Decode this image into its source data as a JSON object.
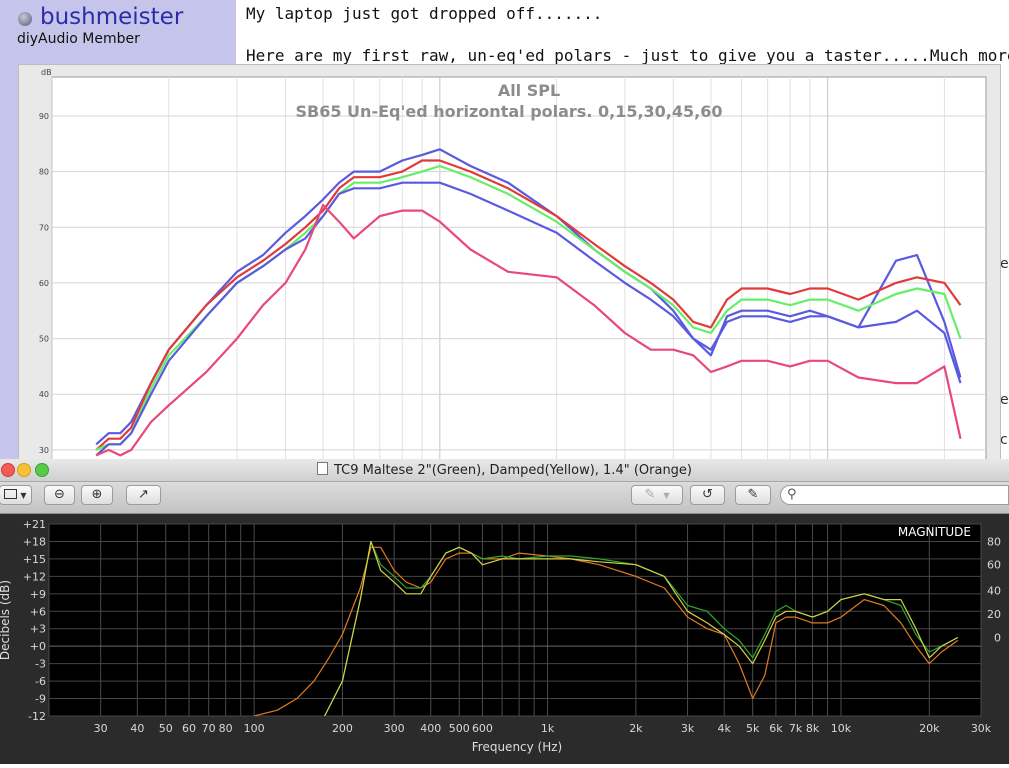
{
  "forum": {
    "username": "bushmeister",
    "member_title": "diyAudio Member",
    "post_line_1": "My laptop just got dropped off.......",
    "post_line_2": "Here are my first raw, un-eq'ed polars - just to give you a taster.....Much more to follow.",
    "edge_chars": [
      "e",
      "e",
      "c"
    ]
  },
  "spl_chart": {
    "title": "All SPL",
    "subtitle": "SB65 Un-Eq'ed horizontal polars. 0,15,30,45,60",
    "y_unit": "dB",
    "y_ticks": [
      "90",
      "80",
      "70",
      "60",
      "50",
      "40",
      "30"
    ],
    "colors": {
      "s0": "#5a5ae0",
      "s1": "#e23a3a",
      "s2": "#66ee66",
      "s3": "#5a5ae0",
      "s4": "#e8487a"
    }
  },
  "window": {
    "title": "TC9 Maltese 2\"(Green), Damped(Yellow), 1.4\" (Orange)",
    "toolbar": {
      "zoom_out": "⊖",
      "zoom_in": "⊕",
      "share": "↗",
      "undo": "↺",
      "edit": "✎",
      "search_placeholder": ""
    }
  },
  "chart_data": [
    {
      "type": "line",
      "title": "All SPL",
      "subtitle": "SB65 Un-Eq'ed horizontal polars. 0,15,30,45,60",
      "ylabel": "dB",
      "x_scale": "log",
      "ylim": [
        28,
        97
      ],
      "y_ticks": [
        30,
        40,
        50,
        60,
        70,
        80,
        90
      ],
      "series": [
        {
          "x": [
            130,
            140,
            150,
            160,
            180,
            200,
            250,
            300,
            350,
            400,
            450,
            500,
            550,
            600,
            700,
            800,
            900,
            1000,
            1200,
            1500,
            2000,
            2500,
            3000,
            3500,
            4000,
            4500,
            5000,
            5500,
            6000,
            7000,
            8000,
            9000,
            10000,
            12000,
            15000,
            17000,
            20000,
            22000
          ],
          "values": [
            31,
            33,
            33,
            35,
            42,
            48,
            56,
            62,
            65,
            69,
            72,
            75,
            78,
            80,
            80,
            82,
            83,
            84,
            81,
            78,
            72,
            66,
            62,
            59,
            55,
            50,
            47,
            54,
            55,
            55,
            54,
            55,
            54,
            52,
            64,
            65,
            53,
            43
          ]
        },
        {
          "x": [
            130,
            140,
            150,
            160,
            180,
            200,
            250,
            300,
            350,
            400,
            450,
            500,
            550,
            600,
            700,
            800,
            900,
            1000,
            1200,
            1500,
            2000,
            2500,
            3000,
            3500,
            4000,
            4500,
            5000,
            5500,
            6000,
            7000,
            8000,
            9000,
            10000,
            12000,
            15000,
            17000,
            20000,
            22000
          ],
          "values": [
            30,
            32,
            32,
            34,
            42,
            48,
            56,
            61,
            64,
            67,
            70,
            73,
            77,
            79,
            79,
            80,
            82,
            82,
            80,
            77,
            72,
            67,
            63,
            60,
            57,
            53,
            52,
            57,
            59,
            59,
            58,
            59,
            59,
            57,
            60,
            61,
            60,
            56
          ]
        },
        {
          "x": [
            130,
            140,
            150,
            160,
            180,
            200,
            250,
            300,
            350,
            400,
            450,
            500,
            550,
            600,
            700,
            800,
            900,
            1000,
            1200,
            1500,
            2000,
            2500,
            3000,
            3500,
            4000,
            4500,
            5000,
            5500,
            6000,
            7000,
            8000,
            9000,
            10000,
            12000,
            15000,
            17000,
            20000,
            22000
          ],
          "values": [
            30,
            31,
            31,
            33,
            41,
            47,
            54,
            60,
            63,
            66,
            69,
            72,
            76,
            78,
            78,
            79,
            80,
            81,
            79,
            76,
            71,
            66,
            62,
            59,
            56,
            52,
            51,
            55,
            57,
            57,
            56,
            57,
            57,
            55,
            58,
            59,
            58,
            50
          ]
        },
        {
          "x": [
            130,
            140,
            150,
            160,
            180,
            200,
            250,
            300,
            350,
            400,
            450,
            500,
            550,
            600,
            700,
            800,
            900,
            1000,
            1200,
            1500,
            2000,
            2500,
            3000,
            3500,
            4000,
            4500,
            5000,
            5500,
            6000,
            7000,
            8000,
            9000,
            10000,
            12000,
            15000,
            17000,
            20000,
            22000
          ],
          "values": [
            29,
            31,
            31,
            33,
            40,
            46,
            54,
            60,
            63,
            66,
            68,
            72,
            76,
            77,
            77,
            78,
            78,
            78,
            76,
            73,
            69,
            64,
            60,
            57,
            54,
            50,
            48,
            53,
            54,
            54,
            53,
            54,
            54,
            52,
            53,
            55,
            51,
            42
          ]
        },
        {
          "x": [
            130,
            140,
            150,
            160,
            180,
            200,
            250,
            300,
            350,
            400,
            450,
            500,
            550,
            600,
            700,
            800,
            900,
            1000,
            1200,
            1500,
            2000,
            2500,
            3000,
            3500,
            4000,
            4500,
            5000,
            5500,
            6000,
            7000,
            8000,
            9000,
            10000,
            12000,
            15000,
            17000,
            20000,
            22000
          ],
          "values": [
            29,
            30,
            29,
            30,
            35,
            38,
            44,
            50,
            56,
            60,
            66,
            74,
            71,
            68,
            72,
            73,
            73,
            71,
            66,
            62,
            61,
            56,
            51,
            48,
            48,
            47,
            44,
            45,
            46,
            46,
            45,
            46,
            46,
            43,
            42,
            42,
            45,
            32
          ]
        }
      ]
    },
    {
      "type": "line",
      "title": "",
      "badge": "MAGNITUDE",
      "xlabel": "Frequency (Hz)",
      "ylabel": "Decibels (dB)",
      "x_scale": "log",
      "xlim": [
        20,
        30000
      ],
      "ylim": [
        -12,
        21
      ],
      "y_ticks": [
        "+21",
        "+18",
        "+15",
        "+12",
        "+9",
        "+6",
        "+3",
        "+0",
        "-3",
        "-6",
        "-9",
        "-12"
      ],
      "y_ticks_right": [
        "80",
        "60",
        "40",
        "20",
        "0"
      ],
      "x_ticks": [
        "30",
        "40",
        "50",
        "60",
        "70",
        "80",
        "100",
        "200",
        "300",
        "400",
        "500",
        "600",
        "1k",
        "2k",
        "3k",
        "4k",
        "5k",
        "6k",
        "7k",
        "8k",
        "10k",
        "20k",
        "30k"
      ],
      "series": [
        {
          "name": "Green",
          "x": [
            150,
            170,
            200,
            230,
            250,
            270,
            300,
            330,
            370,
            400,
            450,
            500,
            550,
            600,
            700,
            800,
            1000,
            1200,
            1500,
            2000,
            2500,
            3000,
            3500,
            4000,
            4500,
            5000,
            5500,
            6000,
            6500,
            7000,
            8000,
            9000,
            10000,
            12000,
            14000,
            16000,
            18000,
            20000,
            22000,
            25000
          ],
          "values": [
            -15,
            -13,
            -6,
            8,
            18,
            14,
            12,
            10,
            10,
            12,
            16,
            17,
            16,
            15,
            15.5,
            15,
            15.5,
            15.5,
            15,
            14,
            12,
            7,
            6,
            3,
            1,
            -2,
            2,
            6,
            7,
            6,
            5,
            6,
            8,
            9,
            8,
            7,
            2,
            -1,
            0,
            1.5
          ]
        },
        {
          "name": "Yellow",
          "x": [
            150,
            170,
            200,
            230,
            250,
            270,
            300,
            330,
            370,
            400,
            450,
            500,
            550,
            600,
            700,
            800,
            1000,
            1200,
            1500,
            2000,
            2500,
            3000,
            3500,
            4000,
            4500,
            5000,
            5500,
            6000,
            6500,
            7000,
            8000,
            9000,
            10000,
            12000,
            14000,
            16000,
            18000,
            20000,
            22000,
            25000
          ],
          "values": [
            -15,
            -13,
            -6,
            8,
            18,
            13,
            11,
            9,
            9,
            12,
            16,
            17,
            16,
            14,
            15,
            15,
            15,
            15,
            14.5,
            14,
            12,
            6,
            4,
            2,
            0,
            -3,
            1,
            5,
            6,
            6,
            5,
            6,
            8,
            9,
            8,
            8,
            3,
            -2,
            0,
            1.5
          ]
        },
        {
          "name": "Orange",
          "x": [
            100,
            120,
            140,
            160,
            180,
            200,
            230,
            250,
            270,
            300,
            330,
            370,
            400,
            450,
            500,
            550,
            600,
            700,
            800,
            1000,
            1200,
            1500,
            2000,
            2500,
            3000,
            3500,
            4000,
            4500,
            5000,
            5500,
            6000,
            6500,
            7000,
            8000,
            9000,
            10000,
            12000,
            14000,
            16000,
            18000,
            20000,
            22000,
            25000
          ],
          "values": [
            -12,
            -11,
            -9,
            -6,
            -2,
            2,
            10,
            17,
            17,
            13,
            11,
            10,
            11,
            15,
            16,
            16,
            15,
            15,
            16,
            15.5,
            15,
            14,
            12,
            10,
            5,
            3,
            2,
            -3,
            -9,
            -5,
            4,
            5,
            5,
            4,
            4,
            5,
            8,
            7,
            4,
            0,
            -3,
            -1,
            1
          ]
        }
      ]
    }
  ]
}
